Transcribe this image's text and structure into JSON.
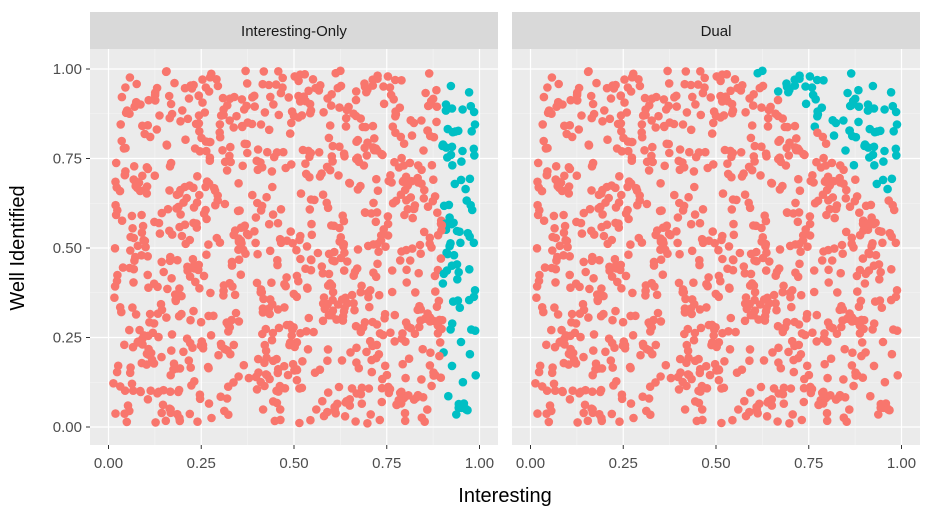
{
  "colors": {
    "panel_bg": "#EBEBEB",
    "strip_bg": "#D9D9D9",
    "grid_major": "#FFFFFF",
    "grid_minor": "#F5F5F5",
    "tick_text": "#4D4D4D",
    "group_other": "#F8766D",
    "group_selected": "#00BFC4"
  },
  "chart_data": [
    {
      "type": "scatter",
      "facet": "Interesting-Only",
      "xlabel": "Interesting",
      "ylabel": "Well Identified",
      "xlim": [
        0,
        1
      ],
      "ylim": [
        0,
        1
      ],
      "xticks": [
        "0.00",
        "0.25",
        "0.50",
        "0.75",
        "1.00"
      ],
      "yticks": [
        "0.00",
        "0.25",
        "0.50",
        "0.75",
        "1.00"
      ],
      "grid": true,
      "n_points_approx": 1000,
      "selection_rule": "Interesting > 0.9",
      "series": [
        {
          "color": "group_other",
          "region": "x < 0.9",
          "approx_count": 900
        },
        {
          "color": "group_selected",
          "region": "x >= 0.9",
          "approx_count": 100
        }
      ]
    },
    {
      "type": "scatter",
      "facet": "Dual",
      "xlabel": "Interesting",
      "ylabel": "Well Identified",
      "xlim": [
        0,
        1
      ],
      "ylim": [
        0,
        1
      ],
      "xticks": [
        "0.00",
        "0.25",
        "0.50",
        "0.75",
        "1.00"
      ],
      "yticks": [
        "0.00",
        "0.25",
        "0.50",
        "0.75",
        "1.00"
      ],
      "grid": true,
      "n_points_approx": 1000,
      "selection_rule": "Interesting + Well Identified > 1.6 (x > 0.55, y > 0.6)",
      "series": [
        {
          "color": "group_other",
          "region": "x + y <= 1.6",
          "approx_count": 900
        },
        {
          "color": "group_selected",
          "region": "x + y > 1.6",
          "approx_count": 100
        }
      ]
    }
  ],
  "labels": {
    "facet_left": "Interesting-Only",
    "facet_right": "Dual",
    "x_axis_title": "Interesting",
    "y_axis_title": "Well Identified",
    "x_ticks": [
      "0.00",
      "0.25",
      "0.50",
      "0.75",
      "1.00"
    ],
    "y_ticks": [
      "0.00",
      "0.25",
      "0.50",
      "0.75",
      "1.00"
    ]
  }
}
